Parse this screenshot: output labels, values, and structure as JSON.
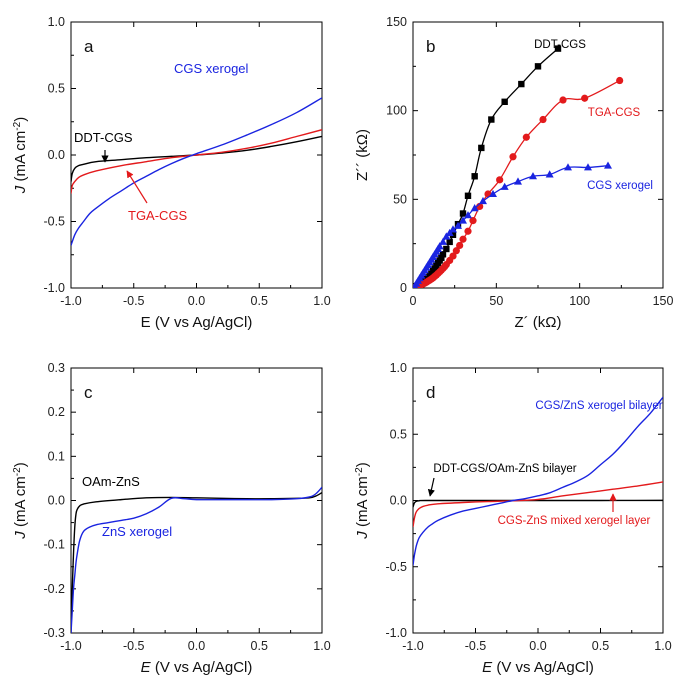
{
  "chart_data": [
    {
      "panel": "a",
      "type": "line",
      "xlabel": "E (V vs Ag/AgCl)",
      "ylabel": "J (mA cm⁻²)",
      "ylabel_parts": {
        "var": "J",
        "unit": "(mA cm",
        "exp": "-2",
        "close": ")"
      },
      "xlim": [
        -1.0,
        1.0
      ],
      "ylim": [
        -1.0,
        1.0
      ],
      "xticks": [
        -1.0,
        -0.5,
        0.0,
        0.5,
        1.0
      ],
      "xtick_labels": [
        "-1.0",
        "-0.5",
        "0.0",
        "0.5",
        "1.0"
      ],
      "yticks": [
        -1.0,
        -0.5,
        0.0,
        0.5,
        1.0
      ],
      "ytick_labels": [
        "-1.0",
        "-0.5",
        "0.0",
        "0.5",
        "1.0"
      ],
      "series": [
        {
          "name": "DDT-CGS",
          "color": "#000000",
          "x": [
            -1.0,
            -0.99,
            -0.97,
            -0.94,
            -0.9,
            -0.8,
            -0.6,
            -0.4,
            -0.2,
            0.0,
            0.2,
            0.4,
            0.6,
            0.8,
            1.0
          ],
          "y": [
            -0.2,
            -0.14,
            -0.1,
            -0.08,
            -0.07,
            -0.05,
            -0.035,
            -0.02,
            -0.01,
            0.0,
            0.015,
            0.035,
            0.065,
            0.1,
            0.14
          ]
        },
        {
          "name": "TGA-CGS",
          "color": "#e31a1c",
          "x": [
            -1.0,
            -0.99,
            -0.97,
            -0.94,
            -0.9,
            -0.8,
            -0.6,
            -0.4,
            -0.2,
            0.0,
            0.2,
            0.4,
            0.6,
            0.8,
            1.0
          ],
          "y": [
            -0.29,
            -0.23,
            -0.2,
            -0.17,
            -0.15,
            -0.12,
            -0.08,
            -0.05,
            -0.02,
            0.0,
            0.02,
            0.05,
            0.09,
            0.14,
            0.19
          ]
        },
        {
          "name": "CGS xerogel",
          "color": "#1a24e0",
          "x": [
            -1.0,
            -0.97,
            -0.94,
            -0.9,
            -0.85,
            -0.8,
            -0.7,
            -0.6,
            -0.5,
            -0.4,
            -0.3,
            -0.2,
            -0.1,
            0.0,
            0.2,
            0.4,
            0.6,
            0.8,
            1.0
          ],
          "y": [
            -0.68,
            -0.6,
            -0.55,
            -0.5,
            -0.44,
            -0.4,
            -0.33,
            -0.27,
            -0.21,
            -0.16,
            -0.11,
            -0.065,
            -0.025,
            0.01,
            0.075,
            0.15,
            0.23,
            0.32,
            0.43
          ]
        }
      ],
      "annotations": [
        {
          "text": "CGS xerogel",
          "color": "#1a24e0"
        },
        {
          "text": "DDT-CGS",
          "color": "#000000"
        },
        {
          "text": "TGA-CGS",
          "color": "#e31a1c"
        }
      ]
    },
    {
      "panel": "b",
      "type": "scatter",
      "xlabel": "Z´ (kΩ)",
      "ylabel": "Z´´ (kΩ)",
      "xlim": [
        0,
        150
      ],
      "ylim": [
        0,
        150
      ],
      "xticks": [
        0,
        50,
        100,
        150
      ],
      "xtick_labels": [
        "0",
        "50",
        "100",
        "150"
      ],
      "yticks": [
        0,
        50,
        100,
        150
      ],
      "ytick_labels": [
        "0",
        "50",
        "100",
        "150"
      ],
      "series": [
        {
          "name": "DDT-CGS",
          "color": "#000000",
          "marker": "square",
          "x": [
            1,
            2,
            3,
            4,
            5,
            6,
            7,
            8,
            9,
            10,
            11,
            12,
            13,
            14,
            15,
            16,
            17,
            18,
            20,
            22,
            24,
            27,
            30,
            33,
            37,
            41,
            47,
            55,
            65,
            75,
            87
          ],
          "y": [
            0.5,
            1,
            1.5,
            2,
            2.5,
            3,
            4,
            5,
            6,
            7,
            8,
            9.5,
            11,
            12.5,
            14,
            15.5,
            17,
            19,
            22,
            26,
            30,
            36,
            42,
            52,
            63,
            79,
            95,
            105,
            115,
            125,
            135
          ]
        },
        {
          "name": "TGA-CGS",
          "color": "#e31a1c",
          "marker": "circle",
          "x": [
            1,
            2,
            3,
            4,
            5,
            6,
            7,
            8,
            9,
            10,
            11,
            12,
            13,
            14,
            15,
            16,
            17,
            18,
            19,
            20,
            22,
            24,
            26,
            28,
            30,
            33,
            36,
            40,
            45,
            52,
            60,
            68,
            78,
            90,
            103,
            124
          ],
          "y": [
            0.3,
            0.6,
            1,
            1.4,
            1.8,
            2.2,
            2.7,
            3.2,
            3.8,
            4.4,
            5,
            5.7,
            6.5,
            7.3,
            8.2,
            9.1,
            10,
            11,
            12,
            13.2,
            15.5,
            18,
            21,
            24,
            27.5,
            32,
            38,
            46,
            53,
            61,
            74,
            85,
            95,
            106,
            107,
            117
          ]
        },
        {
          "name": "CGS xerogel",
          "color": "#1a24e0",
          "marker": "triangle",
          "x": [
            1,
            2,
            3,
            4,
            5,
            6,
            7,
            8,
            9,
            10,
            11,
            12,
            13,
            14,
            15,
            16,
            18,
            20,
            22,
            24,
            27,
            30,
            33,
            37,
            42,
            48,
            55,
            63,
            72,
            82,
            93,
            105,
            117
          ],
          "y": [
            1,
            2.5,
            4,
            5.5,
            7,
            8.5,
            10,
            11.5,
            13,
            14.5,
            16,
            17.5,
            19,
            20.5,
            22,
            23.5,
            26,
            29,
            31,
            33,
            35,
            38,
            41,
            45,
            49,
            53,
            57,
            60,
            63,
            64,
            68,
            68,
            69
          ]
        }
      ],
      "annotations": [
        {
          "text": "DDT-CGS",
          "color": "#000000"
        },
        {
          "text": "TGA-CGS",
          "color": "#e31a1c"
        },
        {
          "text": "CGS xerogel",
          "color": "#1a24e0"
        }
      ]
    },
    {
      "panel": "c",
      "type": "line",
      "xlabel": "E (V vs Ag/AgCl)",
      "ylabel": "J (mA cm⁻²)",
      "ylabel_parts": {
        "var": "J",
        "unit": "(mA cm",
        "exp": "-2",
        "close": ")"
      },
      "xlim": [
        -1.0,
        1.0
      ],
      "ylim": [
        -0.3,
        0.3
      ],
      "xticks": [
        -1.0,
        -0.5,
        0.0,
        0.5,
        1.0
      ],
      "xtick_labels": [
        "-1.0",
        "-0.5",
        "0.0",
        "0.5",
        "1.0"
      ],
      "yticks": [
        -0.3,
        -0.2,
        -0.1,
        0.0,
        0.1,
        0.2,
        0.3
      ],
      "ytick_labels": [
        "-0.3",
        "-0.2",
        "-0.1",
        "0.0",
        "0.1",
        "0.2",
        "0.3"
      ],
      "series": [
        {
          "name": "OAm-ZnS",
          "color": "#000000",
          "x": [
            -1.0,
            -0.99,
            -0.98,
            -0.97,
            -0.96,
            -0.95,
            -0.93,
            -0.9,
            -0.8,
            -0.6,
            -0.4,
            -0.2,
            0.0,
            0.2,
            0.4,
            0.6,
            0.8,
            0.9,
            0.95,
            1.0
          ],
          "y": [
            -0.3,
            -0.2,
            -0.12,
            -0.06,
            -0.03,
            -0.02,
            -0.012,
            -0.008,
            -0.003,
            0.002,
            0.006,
            0.007,
            0.006,
            0.005,
            0.004,
            0.004,
            0.005,
            0.006,
            0.01,
            0.018
          ]
        },
        {
          "name": "ZnS xerogel",
          "color": "#1a24e0",
          "x": [
            -1.0,
            -0.99,
            -0.98,
            -0.97,
            -0.96,
            -0.95,
            -0.93,
            -0.9,
            -0.85,
            -0.8,
            -0.7,
            -0.6,
            -0.5,
            -0.4,
            -0.3,
            -0.2,
            -0.1,
            0.0,
            0.2,
            0.4,
            0.6,
            0.8,
            0.9,
            0.95,
            1.0
          ],
          "y": [
            -0.3,
            -0.25,
            -0.2,
            -0.17,
            -0.14,
            -0.12,
            -0.09,
            -0.07,
            -0.06,
            -0.055,
            -0.05,
            -0.045,
            -0.04,
            -0.03,
            -0.015,
            0.005,
            0.004,
            0.002,
            0.002,
            0.002,
            0.002,
            0.004,
            0.008,
            0.015,
            0.03
          ]
        }
      ],
      "annotations": [
        {
          "text": "OAm-ZnS",
          "color": "#000000"
        },
        {
          "text": "ZnS xerogel",
          "color": "#1a24e0"
        }
      ]
    },
    {
      "panel": "d",
      "type": "line",
      "xlabel": "E (V vs Ag/AgCl)",
      "ylabel": "J (mA cm⁻²)",
      "ylabel_parts": {
        "var": "J",
        "unit": "(mA cm",
        "exp": "-2",
        "close": ")"
      },
      "xlim": [
        -1.0,
        1.0
      ],
      "ylim": [
        -1.0,
        1.0
      ],
      "xticks": [
        -1.0,
        -0.5,
        0.0,
        0.5,
        1.0
      ],
      "xtick_labels": [
        "-1.0",
        "-0.5",
        "0.0",
        "0.5",
        "1.0"
      ],
      "yticks": [
        -1.0,
        -0.5,
        0.0,
        0.5,
        1.0
      ],
      "ytick_labels": [
        "-1.0",
        "-0.5",
        "0.0",
        "0.5",
        "1.0"
      ],
      "series": [
        {
          "name": "DDT-CGS/OAm-ZnS bilayer",
          "color": "#000000",
          "x": [
            -1.0,
            -0.99,
            -0.98,
            -0.97,
            -0.95,
            -0.9,
            -0.5,
            0.0,
            0.5,
            1.0
          ],
          "y": [
            -0.05,
            -0.02,
            -0.01,
            -0.005,
            -0.002,
            0.0,
            0.0,
            0.0,
            0.0,
            0.001
          ]
        },
        {
          "name": "CGS-ZnS mixed xerogel layer",
          "color": "#e31a1c",
          "x": [
            -1.0,
            -0.99,
            -0.98,
            -0.97,
            -0.95,
            -0.92,
            -0.88,
            -0.8,
            -0.6,
            -0.4,
            -0.2,
            0.0,
            0.2,
            0.4,
            0.6,
            0.8,
            1.0
          ],
          "y": [
            -0.2,
            -0.14,
            -0.1,
            -0.08,
            -0.06,
            -0.045,
            -0.035,
            -0.025,
            -0.015,
            -0.008,
            -0.002,
            0.008,
            0.035,
            0.06,
            0.085,
            0.11,
            0.14
          ]
        },
        {
          "name": "CGS/ZnS xerogel bilayer",
          "color": "#1a24e0",
          "x": [
            -1.0,
            -0.99,
            -0.98,
            -0.97,
            -0.95,
            -0.92,
            -0.88,
            -0.85,
            -0.8,
            -0.7,
            -0.6,
            -0.5,
            -0.4,
            -0.3,
            -0.2,
            -0.1,
            0.0,
            0.1,
            0.2,
            0.3,
            0.4,
            0.5,
            0.6,
            0.7,
            0.8,
            0.9,
            1.0
          ],
          "y": [
            -0.49,
            -0.42,
            -0.37,
            -0.33,
            -0.28,
            -0.24,
            -0.2,
            -0.18,
            -0.15,
            -0.11,
            -0.08,
            -0.06,
            -0.04,
            -0.02,
            0.0,
            0.015,
            0.035,
            0.06,
            0.1,
            0.14,
            0.19,
            0.27,
            0.35,
            0.45,
            0.56,
            0.66,
            0.78
          ]
        }
      ],
      "annotations": [
        {
          "text": "CGS/ZnS xerogel bilayer",
          "color": "#1a24e0"
        },
        {
          "text": "DDT-CGS/OAm-ZnS bilayer",
          "color": "#000000"
        },
        {
          "text": "CGS-ZnS mixed xerogel layer",
          "color": "#e31a1c"
        }
      ]
    }
  ]
}
